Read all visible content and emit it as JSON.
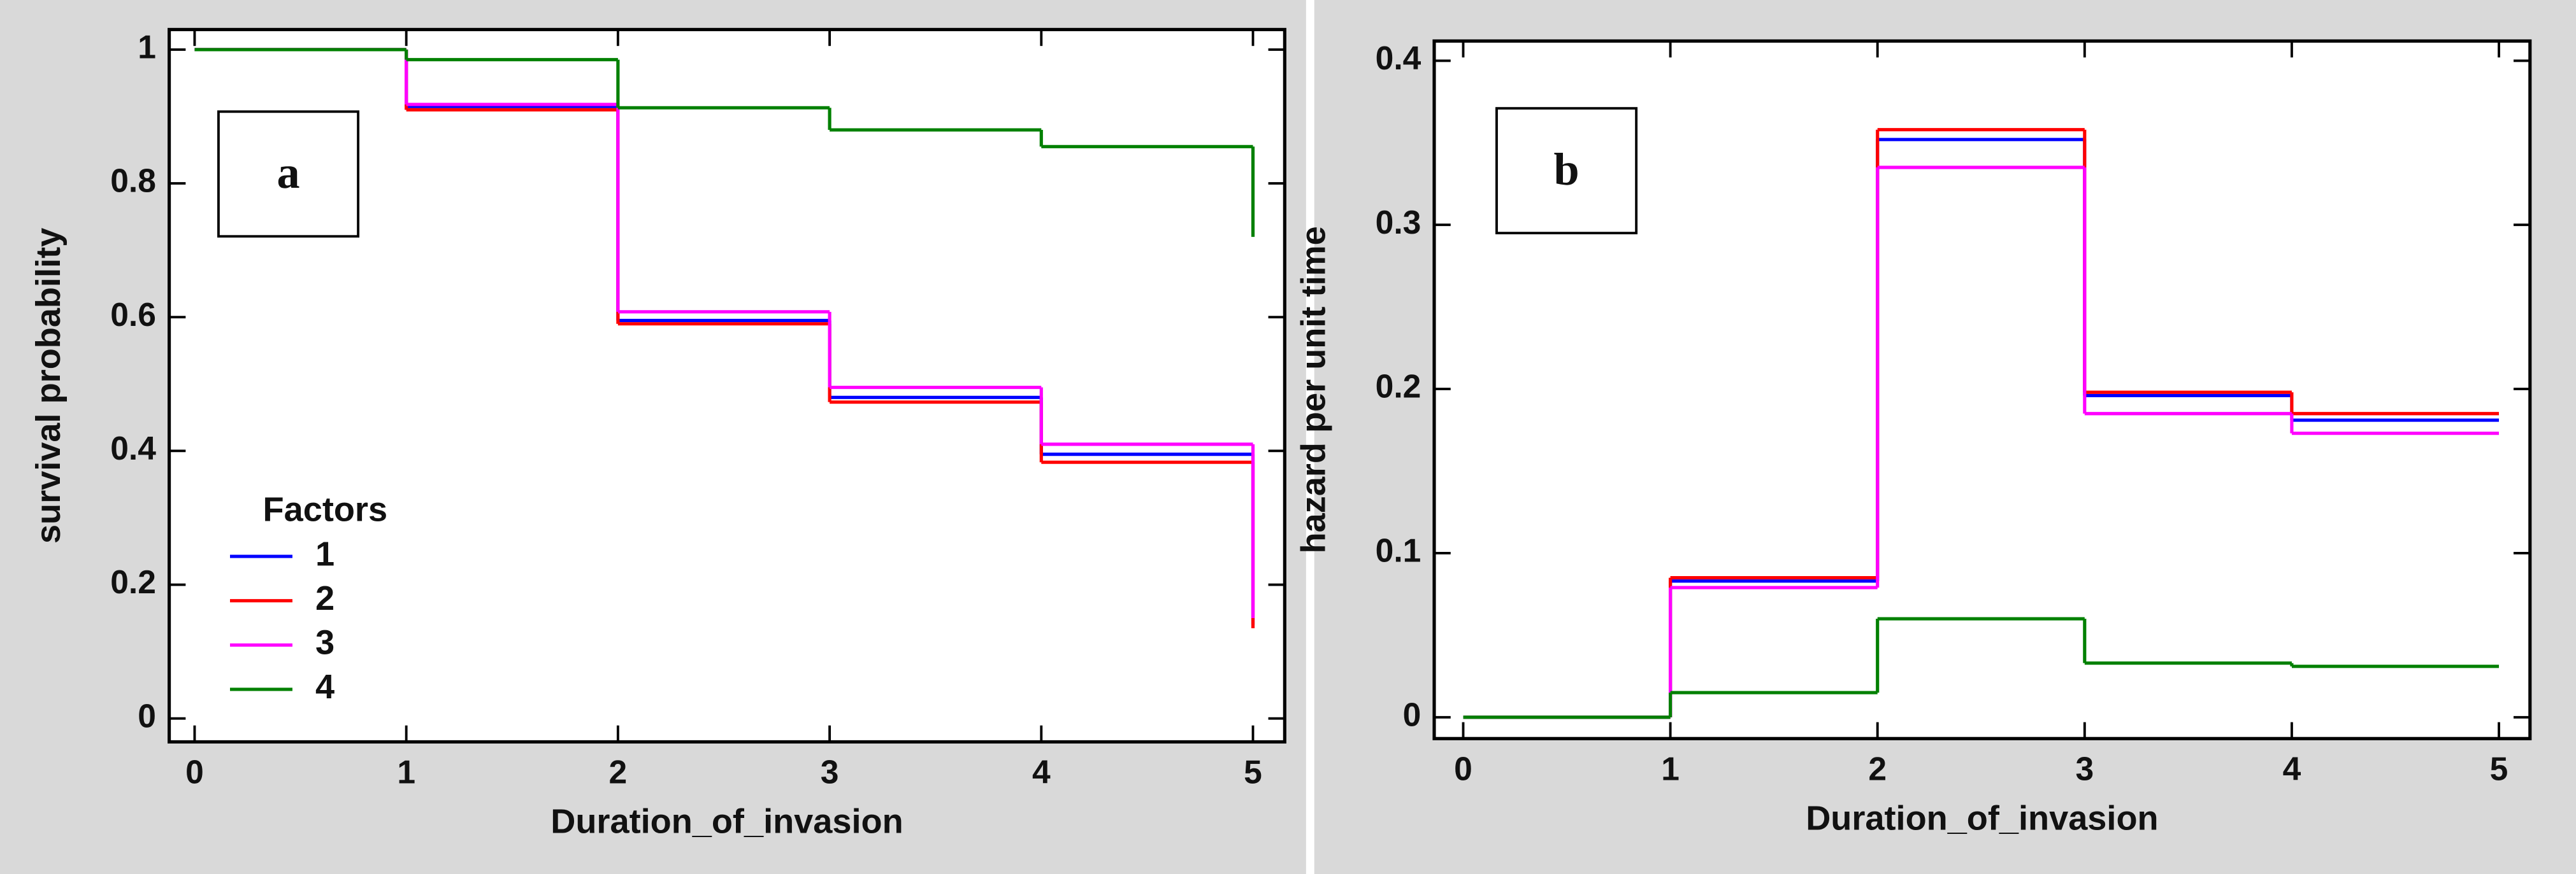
{
  "chart_data": [
    {
      "type": "step",
      "panel_label": "a",
      "xlabel": "Duration_of_invasion",
      "ylabel": "survival probability",
      "x": [
        0,
        1,
        2,
        3,
        4,
        5
      ],
      "xlim": [
        -0.12,
        5.15
      ],
      "xticks": [
        0,
        1,
        2,
        3,
        4,
        5
      ],
      "ylim": [
        -0.035,
        1.03
      ],
      "yticks": [
        0,
        0.2,
        0.4,
        0.6,
        0.8,
        1
      ],
      "legend_title": "Factors",
      "legend": "lower left",
      "series": [
        {
          "name": "1",
          "color": "#0000ff",
          "values": [
            1,
            0.915,
            0.595,
            0.48,
            0.395,
            0.14
          ]
        },
        {
          "name": "2",
          "color": "#ff0000",
          "values": [
            1,
            0.91,
            0.59,
            0.473,
            0.383,
            0.135
          ]
        },
        {
          "name": "3",
          "color": "#ff00ff",
          "values": [
            1,
            0.918,
            0.608,
            0.495,
            0.41,
            0.15
          ]
        },
        {
          "name": "4",
          "color": "#008000",
          "values": [
            1,
            0.985,
            0.913,
            0.88,
            0.855,
            0.72
          ]
        }
      ]
    },
    {
      "type": "step",
      "panel_label": "b",
      "xlabel": "Duration_of_invasion",
      "ylabel": "hazard per unit time",
      "x": [
        0,
        1,
        2,
        3,
        4,
        5
      ],
      "xlim": [
        -0.14,
        5.15
      ],
      "xticks": [
        0,
        1,
        2,
        3,
        4,
        5
      ],
      "ylim": [
        -0.013,
        0.412
      ],
      "yticks": [
        0,
        0.1,
        0.2,
        0.3,
        0.4
      ],
      "series": [
        {
          "name": "1",
          "color": "#0000ff",
          "values": [
            0,
            0.083,
            0.352,
            0.196,
            0.181,
            0.181
          ]
        },
        {
          "name": "2",
          "color": "#ff0000",
          "values": [
            0,
            0.085,
            0.358,
            0.198,
            0.185,
            0.185
          ]
        },
        {
          "name": "3",
          "color": "#ff00ff",
          "values": [
            0,
            0.079,
            0.335,
            0.185,
            0.173,
            0.173
          ]
        },
        {
          "name": "4",
          "color": "#008000",
          "values": [
            0,
            0.015,
            0.06,
            0.033,
            0.031,
            0.031
          ]
        }
      ]
    }
  ]
}
